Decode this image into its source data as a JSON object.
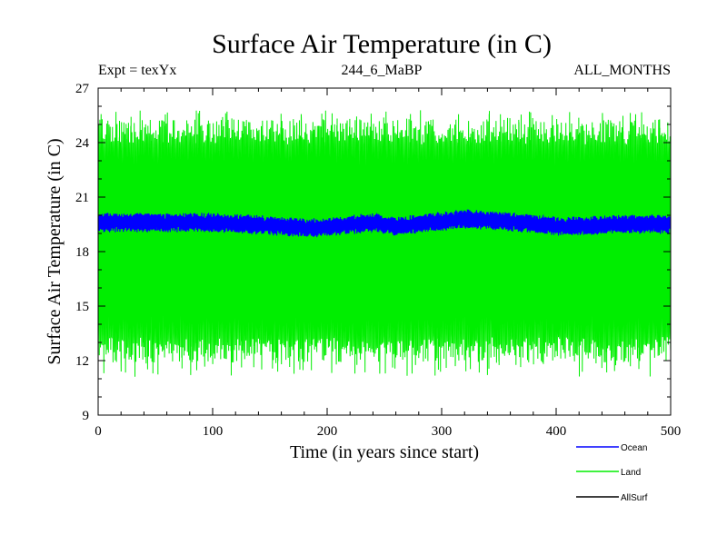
{
  "chart_data": {
    "type": "line",
    "title": "Surface Air Temperature (in C)",
    "experiment_label": "Expt = texYx",
    "run_label": "244_6_MaBP",
    "months_label": "ALL_MONTHS",
    "xlabel": "Time (in years since start)",
    "ylabel": "Surface Air Temperature (in C)",
    "xlim": [
      0,
      500
    ],
    "ylim": [
      9,
      27
    ],
    "x_ticks": [
      0,
      100,
      200,
      300,
      400,
      500
    ],
    "y_ticks": [
      9,
      12,
      15,
      18,
      21,
      24,
      27
    ],
    "grid": false,
    "legend_position": "bottom-right",
    "series": [
      {
        "name": "Ocean",
        "color": "#0000ff",
        "samples_per_year": 12,
        "description": "monthly values oscillating in a narrow band",
        "band_low_start": 19.1,
        "band_high_start": 20.0,
        "band_center": [
          {
            "x": 0,
            "y": 19.6
          },
          {
            "x": 100,
            "y": 19.6
          },
          {
            "x": 190,
            "y": 19.3
          },
          {
            "x": 240,
            "y": 19.6
          },
          {
            "x": 260,
            "y": 19.4
          },
          {
            "x": 320,
            "y": 19.8
          },
          {
            "x": 350,
            "y": 19.7
          },
          {
            "x": 400,
            "y": 19.4
          },
          {
            "x": 460,
            "y": 19.5
          },
          {
            "x": 500,
            "y": 19.5
          }
        ],
        "band_half_width": 0.45
      },
      {
        "name": "Land",
        "color": "#00ee00",
        "samples_per_year": 12,
        "description": "monthly values with strong seasonal cycle",
        "band_low": 12.6,
        "band_high": 24.6,
        "extreme_low": 11.1,
        "extreme_high": 25.8
      },
      {
        "name": "AllSurf",
        "color": "#000000",
        "samples_per_year": 12,
        "description": "not visibly drawn (hidden beneath other series)",
        "values": []
      }
    ]
  }
}
